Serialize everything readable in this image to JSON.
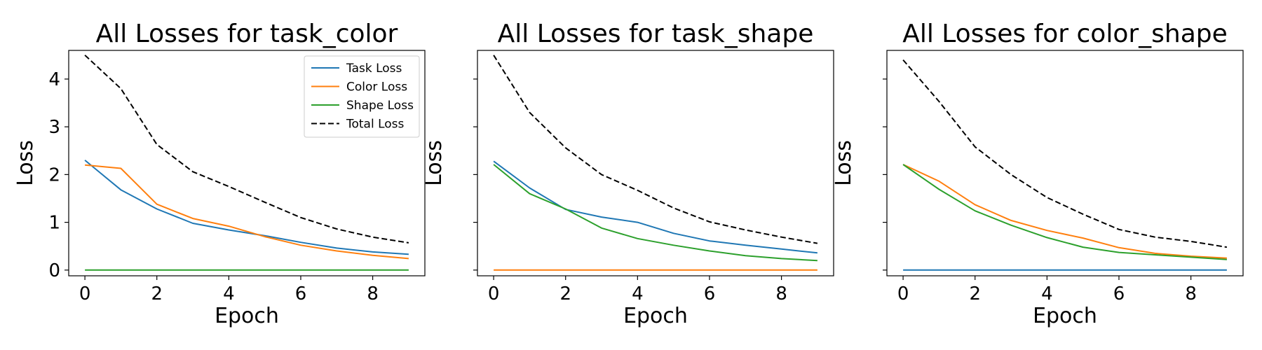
{
  "chart_data": [
    {
      "type": "line",
      "title": "All Losses for task_color",
      "xlabel": "Epoch",
      "ylabel": "Loss",
      "x": [
        0,
        1,
        2,
        3,
        4,
        5,
        6,
        7,
        8,
        9
      ],
      "xticks": [
        0,
        2,
        4,
        6,
        8
      ],
      "yticks": [
        0,
        1,
        2,
        3,
        4
      ],
      "xlim": [
        -0.45,
        9.45
      ],
      "ylim": [
        -0.12,
        4.6
      ],
      "show_ytick_labels": true,
      "grid": false,
      "legend": {
        "visible": true,
        "placement": "top-right"
      },
      "series": [
        {
          "name": "Task Loss",
          "color": "#1f77b4",
          "dash": "solid",
          "values": [
            2.3,
            1.68,
            1.28,
            0.98,
            0.84,
            0.72,
            0.58,
            0.46,
            0.38,
            0.33
          ]
        },
        {
          "name": "Color Loss",
          "color": "#ff7f0e",
          "dash": "solid",
          "values": [
            2.2,
            2.13,
            1.38,
            1.08,
            0.92,
            0.7,
            0.52,
            0.4,
            0.31,
            0.24
          ]
        },
        {
          "name": "Shape Loss",
          "color": "#2ca02c",
          "dash": "solid",
          "values": [
            0,
            0,
            0,
            0,
            0,
            0,
            0,
            0,
            0,
            0
          ]
        },
        {
          "name": "Total Loss",
          "color": "#000000",
          "dash": "dashed",
          "values": [
            4.5,
            3.8,
            2.63,
            2.06,
            1.75,
            1.42,
            1.1,
            0.86,
            0.69,
            0.57
          ]
        }
      ]
    },
    {
      "type": "line",
      "title": "All Losses for task_shape",
      "xlabel": "Epoch",
      "ylabel": "Loss",
      "x": [
        0,
        1,
        2,
        3,
        4,
        5,
        6,
        7,
        8,
        9
      ],
      "xticks": [
        0,
        2,
        4,
        6,
        8
      ],
      "yticks": [
        0,
        1,
        2,
        3,
        4
      ],
      "xlim": [
        -0.45,
        9.45
      ],
      "ylim": [
        -0.12,
        4.6
      ],
      "show_ytick_labels": false,
      "grid": false,
      "legend": {
        "visible": false
      },
      "series": [
        {
          "name": "Task Loss",
          "color": "#1f77b4",
          "dash": "solid",
          "values": [
            2.28,
            1.72,
            1.27,
            1.11,
            1.0,
            0.77,
            0.61,
            0.52,
            0.44,
            0.36
          ]
        },
        {
          "name": "Color Loss",
          "color": "#ff7f0e",
          "dash": "solid",
          "values": [
            0,
            0,
            0,
            0,
            0,
            0,
            0,
            0,
            0,
            0
          ]
        },
        {
          "name": "Shape Loss",
          "color": "#2ca02c",
          "dash": "solid",
          "values": [
            2.21,
            1.6,
            1.28,
            0.88,
            0.66,
            0.52,
            0.4,
            0.3,
            0.24,
            0.2
          ]
        },
        {
          "name": "Total Loss",
          "color": "#000000",
          "dash": "dashed",
          "values": [
            4.5,
            3.3,
            2.56,
            2.0,
            1.67,
            1.3,
            1.01,
            0.84,
            0.69,
            0.56
          ]
        }
      ]
    },
    {
      "type": "line",
      "title": "All Losses for color_shape",
      "xlabel": "Epoch",
      "ylabel": "Loss",
      "x": [
        0,
        1,
        2,
        3,
        4,
        5,
        6,
        7,
        8,
        9
      ],
      "xticks": [
        0,
        2,
        4,
        6,
        8
      ],
      "yticks": [
        0,
        1,
        2,
        3,
        4
      ],
      "xlim": [
        -0.45,
        9.45
      ],
      "ylim": [
        -0.12,
        4.6
      ],
      "show_ytick_labels": false,
      "grid": false,
      "legend": {
        "visible": false
      },
      "series": [
        {
          "name": "Task Loss",
          "color": "#1f77b4",
          "dash": "solid",
          "values": [
            0,
            0,
            0,
            0,
            0,
            0,
            0,
            0,
            0,
            0
          ]
        },
        {
          "name": "Color Loss",
          "color": "#ff7f0e",
          "dash": "solid",
          "values": [
            2.21,
            1.86,
            1.37,
            1.04,
            0.83,
            0.67,
            0.47,
            0.35,
            0.29,
            0.25
          ]
        },
        {
          "name": "Shape Loss",
          "color": "#2ca02c",
          "dash": "solid",
          "values": [
            2.21,
            1.69,
            1.24,
            0.94,
            0.68,
            0.48,
            0.37,
            0.32,
            0.27,
            0.22
          ]
        },
        {
          "name": "Total Loss",
          "color": "#000000",
          "dash": "dashed",
          "values": [
            4.4,
            3.53,
            2.58,
            2.0,
            1.52,
            1.17,
            0.85,
            0.69,
            0.6,
            0.48
          ]
        }
      ]
    }
  ]
}
